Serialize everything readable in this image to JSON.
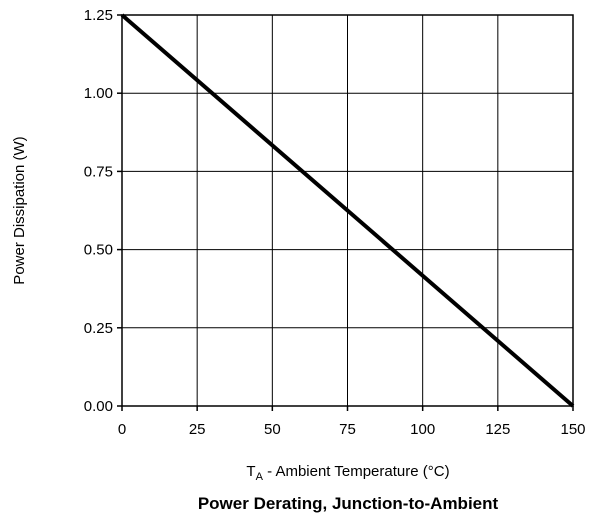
{
  "chart_data": {
    "type": "line",
    "title": "Power Derating, Junction-to-Ambient",
    "xlabel": {
      "symbol": "T",
      "subscript": "A",
      "text": " - Ambient Temperature (°C)"
    },
    "ylabel": "Power Dissipation (W)",
    "xlim": [
      0,
      150
    ],
    "ylim": [
      0,
      1.25
    ],
    "x_ticks": [
      0,
      25,
      50,
      75,
      100,
      125,
      150
    ],
    "x_tick_labels": [
      "0",
      "25",
      "50",
      "75",
      "100",
      "125",
      "150"
    ],
    "y_ticks": [
      0,
      0.25,
      0.5,
      0.75,
      1.0,
      1.25
    ],
    "y_tick_labels": [
      "0.00",
      "0.25",
      "0.50",
      "0.75",
      "1.00",
      "1.25"
    ],
    "grid": true,
    "legend": "none",
    "series": [
      {
        "x": [
          0,
          150
        ],
        "y": [
          1.25,
          0
        ],
        "color": "#000000"
      }
    ]
  }
}
